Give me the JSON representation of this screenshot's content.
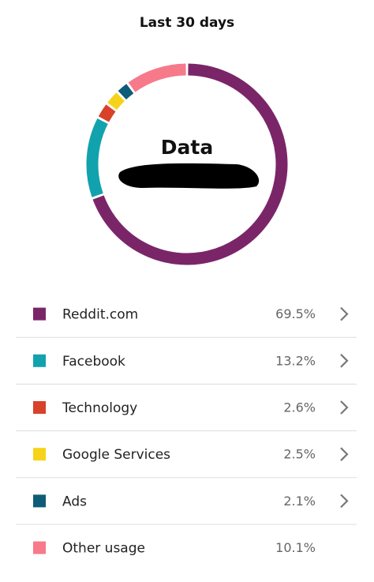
{
  "chart_data": {
    "type": "donut",
    "title": "Last 30 days",
    "center_label": "Data",
    "categories": [
      "Reddit.com",
      "Facebook",
      "Technology",
      "Google Services",
      "Ads",
      "Other usage"
    ],
    "values": [
      69.5,
      13.2,
      2.6,
      2.5,
      2.1,
      10.1
    ],
    "value_labels": [
      "69.5%",
      "13.2%",
      "2.6%",
      "2.5%",
      "2.1%",
      "10.1%"
    ],
    "colors": [
      "#7b2569",
      "#12a2ad",
      "#d8412a",
      "#f6d31a",
      "#0e5c78",
      "#f67a8a"
    ]
  }
}
